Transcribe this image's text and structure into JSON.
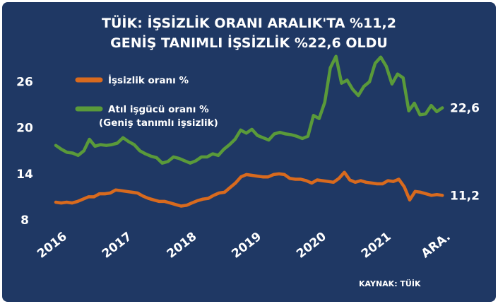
{
  "chart_data": {
    "type": "line",
    "title_line1": "TÜİK: İŞSİZLİK ORANI ARALIK'TA %11,2",
    "title_line2": "GENİŞ TANIMLI İŞSİZLİK %22,6 OLDU",
    "y_ticks": [
      "8",
      "14",
      "20",
      "26"
    ],
    "ylim": [
      8,
      29
    ],
    "x_ticks": [
      {
        "label": "2016",
        "x": 2016.0
      },
      {
        "label": "2017",
        "x": 2017.0
      },
      {
        "label": "2018",
        "x": 2018.0
      },
      {
        "label": "2019",
        "x": 2019.0
      },
      {
        "label": "2020",
        "x": 2020.0
      },
      {
        "label": "2021",
        "x": 2021.0
      },
      {
        "label": "ARA.",
        "x": 2021.92
      }
    ],
    "xlim": [
      2016.0,
      2021.95
    ],
    "source": "KAYNAK: TÜİK",
    "series": [
      {
        "name": "İşsizlik oranı %",
        "legend_line2": "",
        "color": "#d86a1e",
        "end_label": "11,2",
        "x_start": 2016.0,
        "step": 0.0833,
        "values": [
          10.3,
          10.2,
          10.3,
          10.2,
          10.4,
          10.7,
          11.0,
          11.0,
          11.4,
          11.4,
          11.5,
          11.9,
          11.8,
          11.7,
          11.6,
          11.5,
          11.1,
          10.8,
          10.6,
          10.4,
          10.4,
          10.2,
          10.0,
          9.8,
          9.9,
          10.2,
          10.5,
          10.7,
          10.8,
          11.2,
          11.5,
          11.6,
          12.2,
          12.8,
          13.6,
          13.9,
          13.8,
          13.7,
          13.6,
          13.6,
          13.9,
          14.0,
          13.9,
          13.4,
          13.3,
          13.3,
          13.1,
          12.8,
          13.2,
          13.1,
          13.0,
          12.9,
          13.4,
          14.2,
          13.2,
          12.9,
          13.1,
          12.9,
          12.8,
          12.7,
          12.7,
          13.1,
          13.0,
          13.3,
          12.3,
          10.6,
          11.7,
          11.6,
          11.4,
          11.2,
          11.3,
          11.2
        ]
      },
      {
        "name": "Atıl işgücü oranı %",
        "legend_line2": "(Geniş tanımlı işsizlik)",
        "color": "#5a9a3a",
        "end_label": "22,6",
        "x_start": 2016.0,
        "step": 0.0833,
        "values": [
          17.7,
          17.2,
          16.8,
          16.7,
          16.4,
          17.0,
          18.5,
          17.6,
          17.8,
          17.7,
          17.8,
          18.0,
          18.7,
          18.2,
          17.8,
          17.0,
          16.6,
          16.3,
          16.1,
          15.4,
          15.6,
          16.2,
          16.0,
          15.7,
          15.4,
          15.7,
          16.2,
          16.2,
          16.6,
          16.4,
          17.2,
          17.8,
          18.5,
          19.7,
          19.3,
          19.8,
          19.0,
          18.7,
          18.4,
          19.2,
          19.4,
          19.2,
          19.1,
          18.9,
          18.6,
          18.9,
          21.6,
          21.2,
          23.3,
          27.8,
          29.3,
          25.8,
          26.2,
          25.0,
          24.2,
          25.4,
          26.0,
          28.4,
          29.2,
          28.0,
          25.7,
          27.0,
          26.5,
          22.2,
          23.2,
          21.7,
          21.8,
          22.9,
          22.1,
          22.6
        ]
      }
    ]
  }
}
